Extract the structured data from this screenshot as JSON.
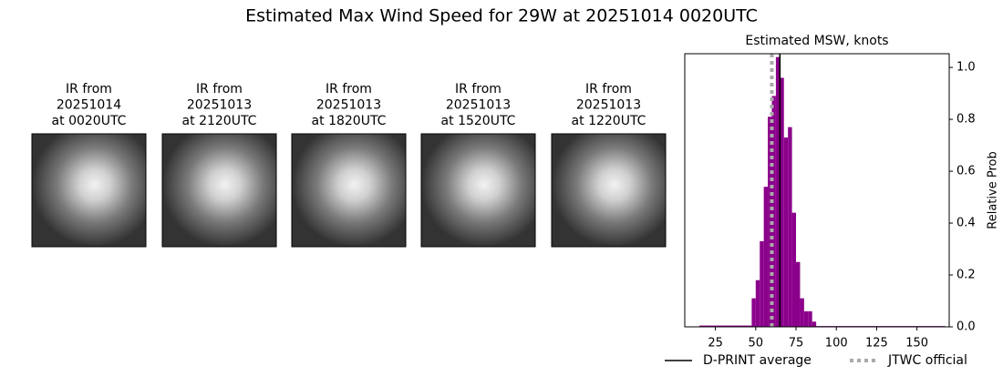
{
  "title": "Estimated Max Wind Speed for 29W at 20251014 0020UTC",
  "panels": [
    {
      "lines": [
        "IR from",
        "20251014",
        "at 0020UTC"
      ]
    },
    {
      "lines": [
        "IR from",
        "20251013",
        "at 2120UTC"
      ]
    },
    {
      "lines": [
        "IR from",
        "20251013",
        "at 1820UTC"
      ]
    },
    {
      "lines": [
        "IR from",
        "20251013",
        "at 1520UTC"
      ]
    },
    {
      "lines": [
        "IR from",
        "20251013",
        "at 1220UTC"
      ]
    }
  ],
  "chart_data": {
    "type": "histogram",
    "title": "Estimated MSW, knots",
    "ylabel": "Relative Prob",
    "yaxis_side": "right",
    "bins": [
      15,
      47.5,
      50,
      52.5,
      55,
      57.5,
      60,
      62.5,
      65,
      67.5,
      70,
      72.5,
      75,
      77.5,
      80,
      82.5,
      85,
      87.5,
      167.5
    ],
    "values": [
      0.005,
      0.11,
      0.18,
      0.33,
      0.54,
      0.81,
      0.89,
      1.04,
      0.96,
      0.73,
      0.77,
      0.44,
      0.25,
      0.11,
      0.06,
      0.06,
      0.02,
      0.003
    ],
    "color": "#8b008b",
    "xlim": [
      6,
      170
    ],
    "xticks": [
      25,
      50,
      75,
      100,
      125,
      150
    ],
    "ylim": [
      0,
      1.053
    ],
    "yticks": [
      {
        "value": 0,
        "label": "0.0"
      },
      0.2,
      0.4,
      0.6,
      0.8,
      {
        "value": 1,
        "label": "1.0"
      }
    ],
    "reference_lines": [
      {
        "name": "D-PRINT average",
        "value": 65,
        "color": "#000000",
        "style": "solid"
      },
      {
        "name": "JTWC official",
        "value": 60,
        "color": "#aaaaaa",
        "style": "dotted"
      }
    ]
  }
}
